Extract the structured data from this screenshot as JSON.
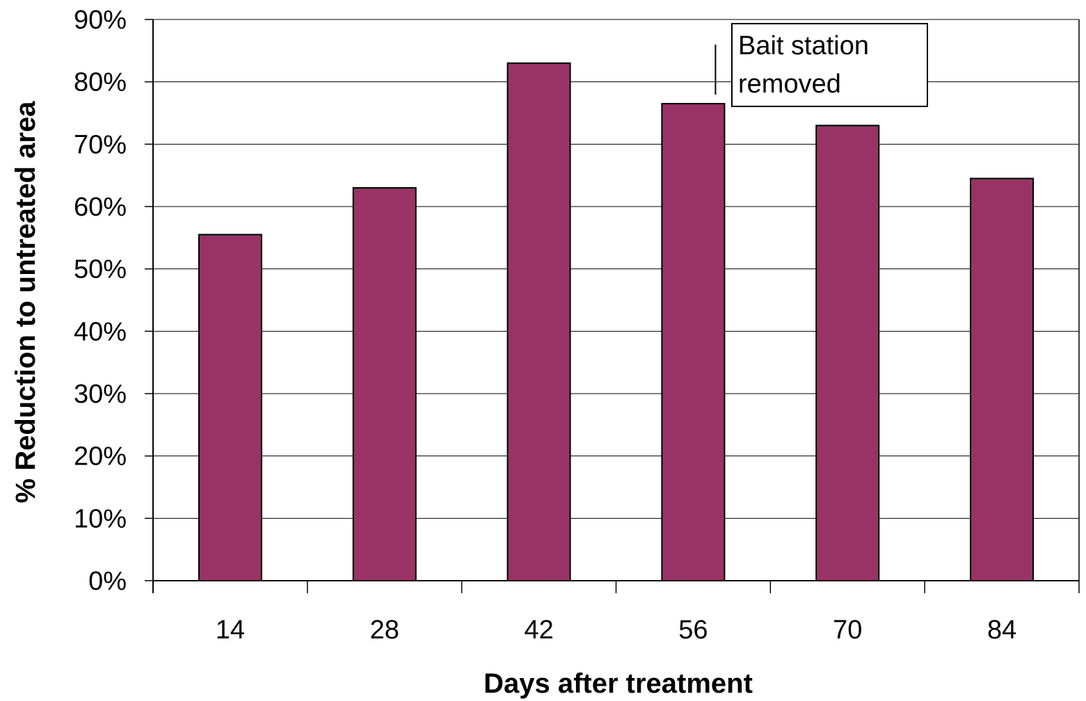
{
  "chart_data": {
    "type": "bar",
    "categories": [
      "14",
      "28",
      "42",
      "56",
      "70",
      "84"
    ],
    "values": [
      55.5,
      63,
      83,
      76.5,
      73,
      64.5
    ],
    "title": "",
    "xlabel": "Days after treatment",
    "ylabel": "% Reduction to untreated area",
    "ylim": [
      0,
      90
    ],
    "yticks": [
      "0%",
      "10%",
      "20%",
      "30%",
      "40%",
      "50%",
      "60%",
      "70%",
      "80%",
      "90%"
    ],
    "grid": true,
    "annotation": {
      "category": "56",
      "lines": [
        "Bait station",
        "removed"
      ]
    },
    "colors": {
      "bar": "#993366",
      "bar_edge": "#000000",
      "grid": "#000000",
      "plot_background": "#ffffff"
    }
  }
}
